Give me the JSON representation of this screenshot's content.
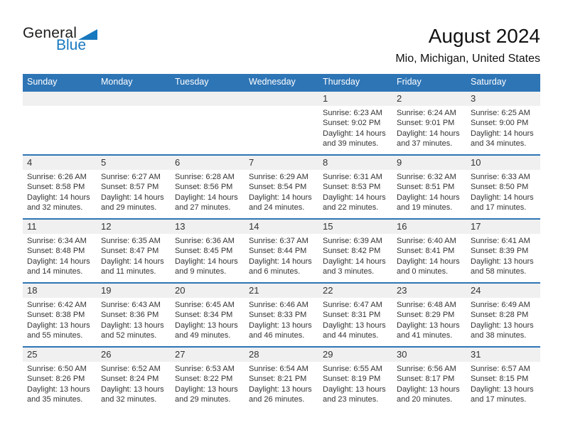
{
  "logo": {
    "line1": "General",
    "line2": "Blue",
    "accent_color": "#1878bf"
  },
  "header": {
    "title": "August 2024",
    "subtitle": "Mio, Michigan, United States"
  },
  "colors": {
    "header_bar": "#2e75b6",
    "week_border": "#2e75b6",
    "day_number_strip": "#f0f0f0"
  },
  "calendar": {
    "weekday_headers": [
      "Sunday",
      "Monday",
      "Tuesday",
      "Wednesday",
      "Thursday",
      "Friday",
      "Saturday"
    ],
    "weeks": [
      [
        null,
        null,
        null,
        null,
        {
          "day": "1",
          "sunrise": "Sunrise: 6:23 AM",
          "sunset": "Sunset: 9:02 PM",
          "daylight": "Daylight: 14 hours and 39 minutes."
        },
        {
          "day": "2",
          "sunrise": "Sunrise: 6:24 AM",
          "sunset": "Sunset: 9:01 PM",
          "daylight": "Daylight: 14 hours and 37 minutes."
        },
        {
          "day": "3",
          "sunrise": "Sunrise: 6:25 AM",
          "sunset": "Sunset: 9:00 PM",
          "daylight": "Daylight: 14 hours and 34 minutes."
        }
      ],
      [
        {
          "day": "4",
          "sunrise": "Sunrise: 6:26 AM",
          "sunset": "Sunset: 8:58 PM",
          "daylight": "Daylight: 14 hours and 32 minutes."
        },
        {
          "day": "5",
          "sunrise": "Sunrise: 6:27 AM",
          "sunset": "Sunset: 8:57 PM",
          "daylight": "Daylight: 14 hours and 29 minutes."
        },
        {
          "day": "6",
          "sunrise": "Sunrise: 6:28 AM",
          "sunset": "Sunset: 8:56 PM",
          "daylight": "Daylight: 14 hours and 27 minutes."
        },
        {
          "day": "7",
          "sunrise": "Sunrise: 6:29 AM",
          "sunset": "Sunset: 8:54 PM",
          "daylight": "Daylight: 14 hours and 24 minutes."
        },
        {
          "day": "8",
          "sunrise": "Sunrise: 6:31 AM",
          "sunset": "Sunset: 8:53 PM",
          "daylight": "Daylight: 14 hours and 22 minutes."
        },
        {
          "day": "9",
          "sunrise": "Sunrise: 6:32 AM",
          "sunset": "Sunset: 8:51 PM",
          "daylight": "Daylight: 14 hours and 19 minutes."
        },
        {
          "day": "10",
          "sunrise": "Sunrise: 6:33 AM",
          "sunset": "Sunset: 8:50 PM",
          "daylight": "Daylight: 14 hours and 17 minutes."
        }
      ],
      [
        {
          "day": "11",
          "sunrise": "Sunrise: 6:34 AM",
          "sunset": "Sunset: 8:48 PM",
          "daylight": "Daylight: 14 hours and 14 minutes."
        },
        {
          "day": "12",
          "sunrise": "Sunrise: 6:35 AM",
          "sunset": "Sunset: 8:47 PM",
          "daylight": "Daylight: 14 hours and 11 minutes."
        },
        {
          "day": "13",
          "sunrise": "Sunrise: 6:36 AM",
          "sunset": "Sunset: 8:45 PM",
          "daylight": "Daylight: 14 hours and 9 minutes."
        },
        {
          "day": "14",
          "sunrise": "Sunrise: 6:37 AM",
          "sunset": "Sunset: 8:44 PM",
          "daylight": "Daylight: 14 hours and 6 minutes."
        },
        {
          "day": "15",
          "sunrise": "Sunrise: 6:39 AM",
          "sunset": "Sunset: 8:42 PM",
          "daylight": "Daylight: 14 hours and 3 minutes."
        },
        {
          "day": "16",
          "sunrise": "Sunrise: 6:40 AM",
          "sunset": "Sunset: 8:41 PM",
          "daylight": "Daylight: 14 hours and 0 minutes."
        },
        {
          "day": "17",
          "sunrise": "Sunrise: 6:41 AM",
          "sunset": "Sunset: 8:39 PM",
          "daylight": "Daylight: 13 hours and 58 minutes."
        }
      ],
      [
        {
          "day": "18",
          "sunrise": "Sunrise: 6:42 AM",
          "sunset": "Sunset: 8:38 PM",
          "daylight": "Daylight: 13 hours and 55 minutes."
        },
        {
          "day": "19",
          "sunrise": "Sunrise: 6:43 AM",
          "sunset": "Sunset: 8:36 PM",
          "daylight": "Daylight: 13 hours and 52 minutes."
        },
        {
          "day": "20",
          "sunrise": "Sunrise: 6:45 AM",
          "sunset": "Sunset: 8:34 PM",
          "daylight": "Daylight: 13 hours and 49 minutes."
        },
        {
          "day": "21",
          "sunrise": "Sunrise: 6:46 AM",
          "sunset": "Sunset: 8:33 PM",
          "daylight": "Daylight: 13 hours and 46 minutes."
        },
        {
          "day": "22",
          "sunrise": "Sunrise: 6:47 AM",
          "sunset": "Sunset: 8:31 PM",
          "daylight": "Daylight: 13 hours and 44 minutes."
        },
        {
          "day": "23",
          "sunrise": "Sunrise: 6:48 AM",
          "sunset": "Sunset: 8:29 PM",
          "daylight": "Daylight: 13 hours and 41 minutes."
        },
        {
          "day": "24",
          "sunrise": "Sunrise: 6:49 AM",
          "sunset": "Sunset: 8:28 PM",
          "daylight": "Daylight: 13 hours and 38 minutes."
        }
      ],
      [
        {
          "day": "25",
          "sunrise": "Sunrise: 6:50 AM",
          "sunset": "Sunset: 8:26 PM",
          "daylight": "Daylight: 13 hours and 35 minutes."
        },
        {
          "day": "26",
          "sunrise": "Sunrise: 6:52 AM",
          "sunset": "Sunset: 8:24 PM",
          "daylight": "Daylight: 13 hours and 32 minutes."
        },
        {
          "day": "27",
          "sunrise": "Sunrise: 6:53 AM",
          "sunset": "Sunset: 8:22 PM",
          "daylight": "Daylight: 13 hours and 29 minutes."
        },
        {
          "day": "28",
          "sunrise": "Sunrise: 6:54 AM",
          "sunset": "Sunset: 8:21 PM",
          "daylight": "Daylight: 13 hours and 26 minutes."
        },
        {
          "day": "29",
          "sunrise": "Sunrise: 6:55 AM",
          "sunset": "Sunset: 8:19 PM",
          "daylight": "Daylight: 13 hours and 23 minutes."
        },
        {
          "day": "30",
          "sunrise": "Sunrise: 6:56 AM",
          "sunset": "Sunset: 8:17 PM",
          "daylight": "Daylight: 13 hours and 20 minutes."
        },
        {
          "day": "31",
          "sunrise": "Sunrise: 6:57 AM",
          "sunset": "Sunset: 8:15 PM",
          "daylight": "Daylight: 13 hours and 17 minutes."
        }
      ]
    ]
  }
}
